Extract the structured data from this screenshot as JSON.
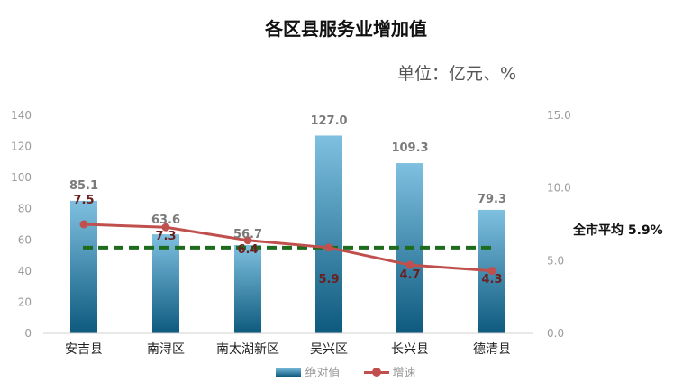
{
  "chart_data": {
    "type": "bar",
    "title": "各区县服务业增加值",
    "unit_label": "单位：亿元、%",
    "categories": [
      "安吉县",
      "南浔区",
      "南太湖新区",
      "吴兴区",
      "长兴县",
      "德清县"
    ],
    "series": [
      {
        "name": "绝对值",
        "type": "bar",
        "axis": "left",
        "values": [
          85.1,
          63.6,
          56.7,
          127.0,
          109.3,
          79.3
        ]
      },
      {
        "name": "增速",
        "type": "line",
        "axis": "right",
        "values": [
          7.5,
          7.3,
          6.4,
          5.9,
          4.7,
          4.3
        ]
      }
    ],
    "y_left": {
      "ticks": [
        "0",
        "20",
        "40",
        "60",
        "80",
        "100",
        "120",
        "140"
      ],
      "ylim": [
        0,
        140
      ]
    },
    "y_right": {
      "ticks": [
        "0.0",
        "5.0",
        "10.0",
        "15.0"
      ],
      "ylim": [
        0,
        15
      ]
    },
    "average": {
      "label": "全市平均 5.9%",
      "value": 5.9
    },
    "bar_labels": [
      "85.1",
      "63.6",
      "56.7",
      "127.0",
      "109.3",
      "79.3"
    ],
    "rate_labels": [
      "7.5",
      "7.3",
      "6.4",
      "5.9",
      "4.7",
      "4.3"
    ],
    "legend_placement": "bottom",
    "colors": {
      "bar_top": "#7fc0e0",
      "bar_bottom": "#0d5a7e",
      "line": "#c0504d",
      "average": "#1e6b1e"
    }
  }
}
